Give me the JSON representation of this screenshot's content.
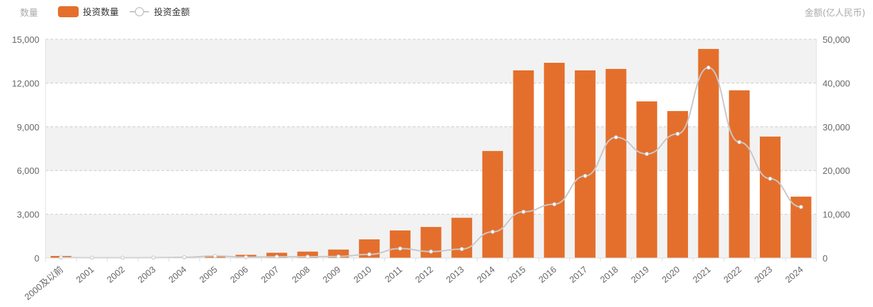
{
  "chart_data": {
    "type": "bar+line",
    "left_axis_name": "数量",
    "right_axis_name": "金额(亿人民币)",
    "categories": [
      "2000及以前",
      "2001",
      "2002",
      "2003",
      "2004",
      "2005",
      "2006",
      "2007",
      "2008",
      "2009",
      "2010",
      "2011",
      "2012",
      "2013",
      "2014",
      "2015",
      "2016",
      "2017",
      "2018",
      "2019",
      "2020",
      "2021",
      "2022",
      "2023",
      "2024"
    ],
    "series": [
      {
        "name": "投资数量",
        "type": "bar",
        "axis": "left",
        "color": "#e46f2c",
        "values": [
          140,
          10,
          10,
          30,
          80,
          100,
          220,
          360,
          440,
          580,
          1280,
          1890,
          2130,
          2760,
          7340,
          12870,
          13390,
          12870,
          12970,
          10740,
          10080,
          14340,
          11500,
          8330,
          4210
        ]
      },
      {
        "name": "投资金额",
        "type": "line",
        "axis": "right",
        "color": "#c8c8c8",
        "values": [
          100,
          50,
          50,
          80,
          150,
          470,
          200,
          300,
          300,
          360,
          840,
          2160,
          1470,
          2050,
          5990,
          10570,
          12300,
          18770,
          27600,
          23800,
          28390,
          43530,
          26500,
          18140,
          11670
        ]
      }
    ],
    "left_ylim": [
      0,
      15000
    ],
    "left_ticks": [
      "0",
      "3,000",
      "6,000",
      "9,000",
      "12,000",
      "15,000"
    ],
    "right_ylim": [
      0,
      50000
    ],
    "right_ticks": [
      "0",
      "10,000",
      "20,000",
      "30,000",
      "40,000",
      "50,000"
    ],
    "grid": true,
    "legend_position": "top-left"
  }
}
